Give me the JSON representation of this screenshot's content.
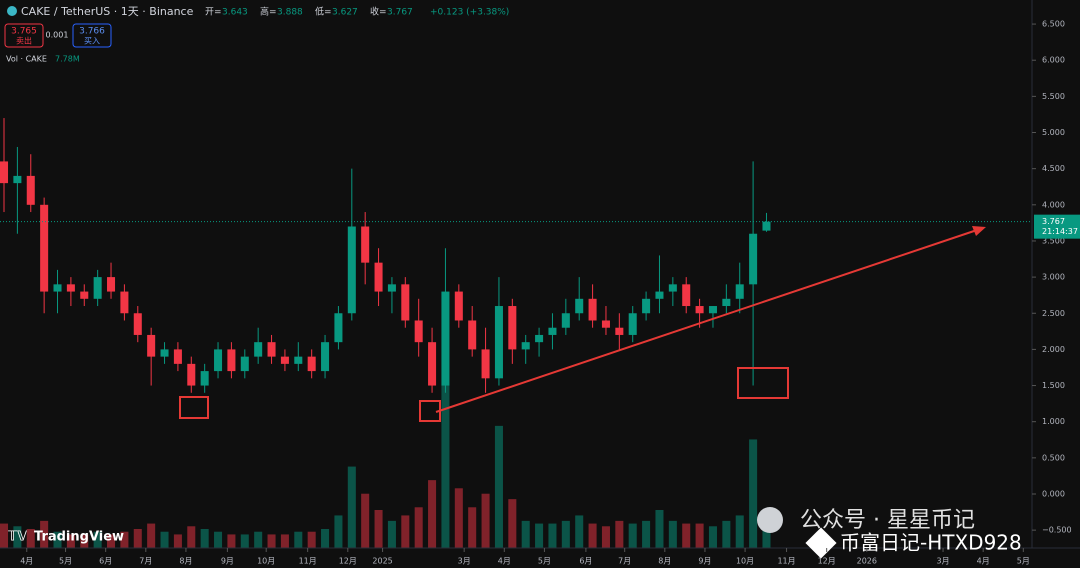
{
  "chart_data": {
    "type": "candlestick",
    "symbol": "CAKE / TetherUS · 1天 · Binance",
    "ohlc_labels": [
      "开=",
      "高=",
      "低=",
      "收="
    ],
    "change": "+0.123 (+3.38%)",
    "sell_price": "3.765",
    "sell_label": "卖出",
    "spread": "0.001",
    "buy_price": "3.766",
    "buy_label": "买入",
    "volume_title": "Vol · CAKE",
    "volume_value": "7.78M",
    "countdown": "21:14:37",
    "logo": "TradingView",
    "watermark": "公众号 · 星星币记",
    "watermark2": "币富日记-HTXD928",
    "open": [
      4.6,
      4.3,
      4.4,
      4.0,
      2.8,
      2.9,
      2.8,
      2.7,
      3.0,
      2.8,
      2.5,
      2.2,
      1.9,
      2.0,
      1.8,
      1.5,
      1.7,
      2.0,
      1.7,
      1.9,
      2.1,
      1.9,
      1.8,
      1.9,
      1.7,
      2.1,
      2.5,
      3.7,
      3.2,
      2.8,
      2.9,
      2.4,
      2.1,
      1.5,
      2.8,
      2.4,
      2.0,
      1.6,
      2.6,
      2.0,
      2.1,
      2.2,
      2.3,
      2.5,
      2.7,
      2.4,
      2.3,
      2.2,
      2.5,
      2.7,
      2.8,
      2.9,
      2.6,
      2.5,
      2.6,
      2.7,
      2.9,
      3.643
    ],
    "high": [
      5.2,
      4.8,
      4.7,
      4.1,
      3.1,
      3.0,
      2.9,
      3.1,
      3.2,
      2.9,
      2.6,
      2.3,
      2.1,
      2.1,
      1.9,
      1.8,
      2.1,
      2.1,
      2.0,
      2.3,
      2.2,
      2.0,
      2.1,
      2.0,
      2.2,
      2.6,
      4.5,
      3.9,
      3.4,
      3.0,
      3.0,
      2.7,
      2.3,
      3.4,
      2.9,
      2.6,
      2.3,
      3.0,
      2.7,
      2.2,
      2.3,
      2.5,
      2.7,
      3.0,
      2.9,
      2.6,
      2.5,
      2.6,
      2.8,
      3.3,
      3.0,
      3.0,
      2.7,
      2.6,
      2.9,
      3.2,
      4.6,
      3.888
    ],
    "low": [
      3.9,
      3.6,
      3.9,
      2.5,
      2.5,
      2.6,
      2.6,
      2.6,
      2.7,
      2.4,
      2.1,
      1.5,
      1.8,
      1.7,
      1.4,
      1.4,
      1.6,
      1.6,
      1.6,
      1.8,
      1.8,
      1.7,
      1.7,
      1.6,
      1.6,
      2.0,
      2.4,
      2.9,
      2.6,
      2.5,
      2.3,
      1.9,
      1.4,
      1.4,
      2.3,
      1.9,
      1.4,
      1.5,
      1.8,
      1.8,
      1.9,
      2.0,
      2.2,
      2.4,
      2.3,
      2.2,
      2.0,
      2.1,
      2.4,
      2.5,
      2.6,
      2.5,
      2.3,
      2.3,
      2.5,
      2.5,
      1.5,
      3.627
    ],
    "close": [
      4.3,
      4.4,
      4.0,
      2.8,
      2.9,
      2.8,
      2.7,
      3.0,
      2.8,
      2.5,
      2.2,
      1.9,
      2.0,
      1.8,
      1.5,
      1.7,
      2.0,
      1.7,
      1.9,
      2.1,
      1.9,
      1.8,
      1.9,
      1.7,
      2.1,
      2.5,
      3.7,
      3.2,
      2.8,
      2.9,
      2.4,
      2.1,
      1.5,
      2.8,
      2.4,
      2.0,
      1.6,
      2.6,
      2.0,
      2.1,
      2.2,
      2.3,
      2.5,
      2.7,
      2.4,
      2.3,
      2.2,
      2.5,
      2.7,
      2.8,
      2.9,
      2.6,
      2.5,
      2.6,
      2.7,
      2.9,
      3.6,
      3.767
    ],
    "volume": [
      9,
      8,
      7,
      10,
      6,
      5,
      5,
      6,
      5,
      6,
      7,
      9,
      6,
      5,
      8,
      7,
      6,
      5,
      5,
      6,
      5,
      5,
      6,
      6,
      7,
      12,
      30,
      20,
      14,
      10,
      12,
      15,
      25,
      60,
      22,
      15,
      20,
      45,
      18,
      10,
      9,
      9,
      10,
      12,
      9,
      8,
      10,
      9,
      10,
      14,
      10,
      9,
      9,
      8,
      10,
      12,
      40,
      7.78
    ],
    "up_color": "#089981",
    "down_color": "#f23645",
    "ylim": [
      -0.747,
      6.833
    ],
    "yticks": [
      {
        "value": 6.5,
        "label": "6.500"
      },
      {
        "value": 6,
        "label": "6.000"
      },
      {
        "value": 5.5,
        "label": "5.500"
      },
      {
        "value": 5,
        "label": "5.000"
      },
      {
        "value": 4.5,
        "label": "4.500"
      },
      {
        "value": 4,
        "label": "4.000"
      },
      {
        "value": 3.5,
        "label": "3.500"
      },
      {
        "value": 3,
        "label": "3.000"
      },
      {
        "value": 2.5,
        "label": "2.500"
      },
      {
        "value": 2,
        "label": "2.000"
      },
      {
        "value": 1.5,
        "label": "1.500"
      },
      {
        "value": 1,
        "label": "1.000"
      },
      {
        "value": 0.5,
        "label": "0.500"
      },
      {
        "value": 0,
        "label": "0.000"
      },
      {
        "value": -0.5,
        "label": "−0.500"
      }
    ],
    "xlim": [
      0,
      77
    ],
    "xticks": [
      {
        "value": 2.0,
        "label": "4月"
      },
      {
        "value": 4.9,
        "label": "5月"
      },
      {
        "value": 7.9,
        "label": "6月"
      },
      {
        "value": 10.9,
        "label": "7月"
      },
      {
        "value": 13.9,
        "label": "8月"
      },
      {
        "value": 17.0,
        "label": "9月"
      },
      {
        "value": 19.9,
        "label": "10月"
      },
      {
        "value": 23.0,
        "label": "11月"
      },
      {
        "value": 26.0,
        "label": "12月"
      },
      {
        "value": 28.6,
        "label": "2025"
      },
      {
        "value": 34.7,
        "label": "3月"
      },
      {
        "value": 37.7,
        "label": "4月"
      },
      {
        "value": 40.7,
        "label": "5月"
      },
      {
        "value": 43.8,
        "label": "6月"
      },
      {
        "value": 46.7,
        "label": "7月"
      },
      {
        "value": 49.7,
        "label": "8月"
      },
      {
        "value": 52.7,
        "label": "9月"
      },
      {
        "value": 55.7,
        "label": "10月"
      },
      {
        "value": 58.8,
        "label": "11月"
      },
      {
        "value": 61.8,
        "label": "12月"
      },
      {
        "value": 64.8,
        "label": "2026"
      },
      {
        "value": 70.5,
        "label": "3月"
      },
      {
        "value": 73.5,
        "label": "4月"
      },
      {
        "value": 76.5,
        "label": "5月"
      }
    ],
    "volume_lim": [
      0,
      70
    ]
  }
}
